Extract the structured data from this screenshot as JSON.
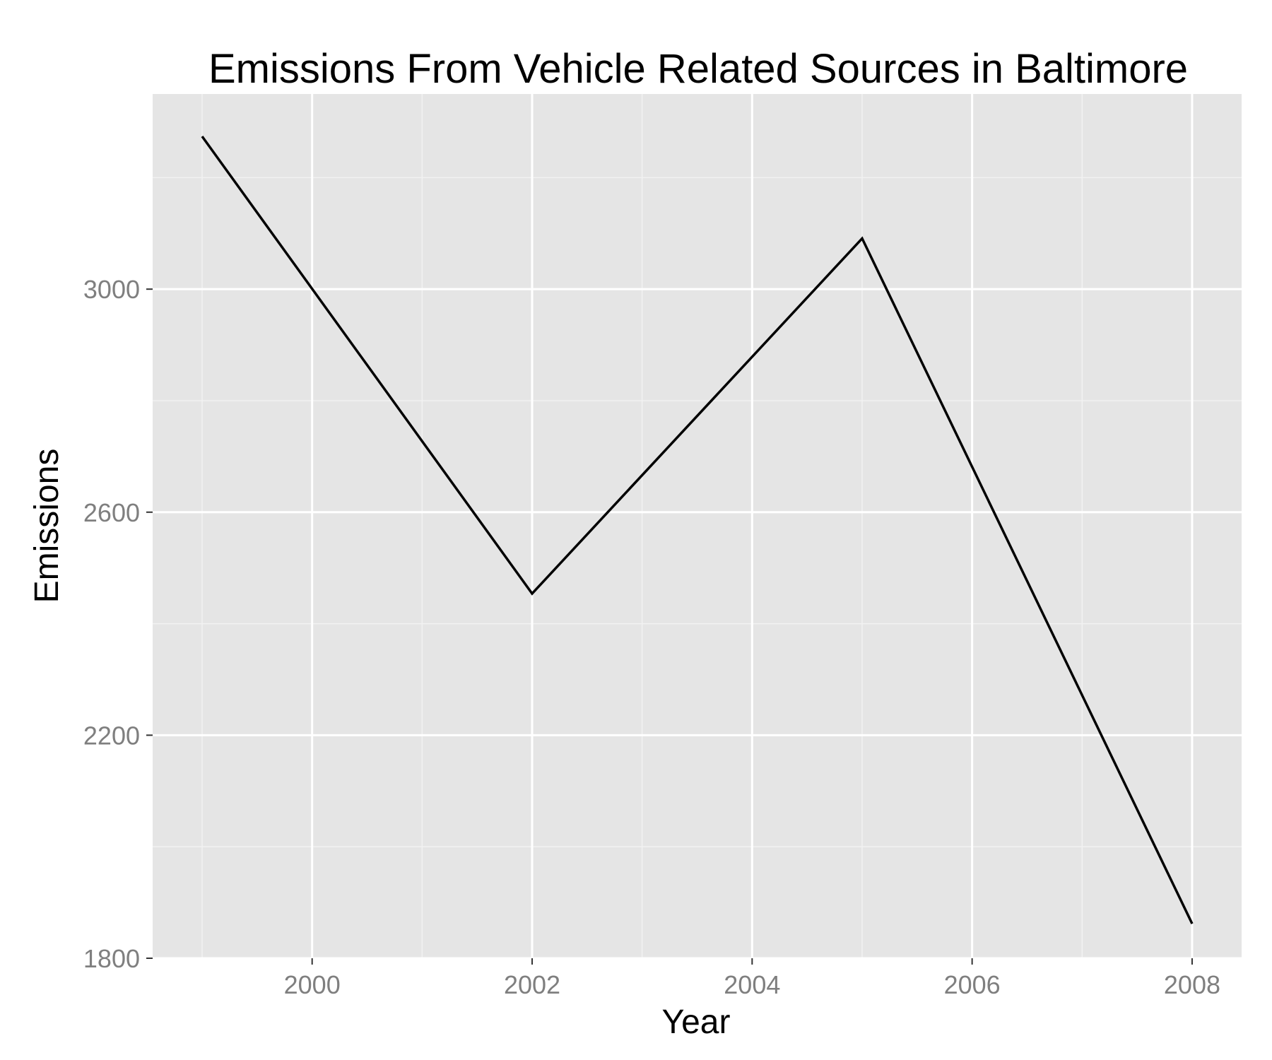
{
  "chart_data": {
    "type": "line",
    "title": "Emissions From Vehicle Related Sources in Baltimore",
    "xlabel": "Year",
    "ylabel": "Emissions",
    "xlim": [
      1998.55,
      2008.45
    ],
    "ylim": [
      1800,
      3350
    ],
    "x_ticks": [
      2000,
      2002,
      2004,
      2006,
      2008
    ],
    "x_tick_labels": [
      "2000",
      "2002",
      "2004",
      "2006",
      "2008"
    ],
    "y_ticks": [
      1800,
      2200,
      2600,
      3000
    ],
    "y_tick_labels": [
      "1800",
      "2200",
      "2600",
      "3000"
    ],
    "grid": true,
    "legend": "none",
    "series": [
      {
        "x": [
          1999,
          2002,
          2005,
          2008
        ],
        "values": [
          3274,
          2454,
          3091,
          1862
        ]
      }
    ],
    "colors": {
      "panel": "#e5e5e5",
      "grid_major": "#ffffff",
      "grid_minor": "#f2f2f2",
      "line": "#000000",
      "tick_label": "#7f7f7f"
    }
  }
}
